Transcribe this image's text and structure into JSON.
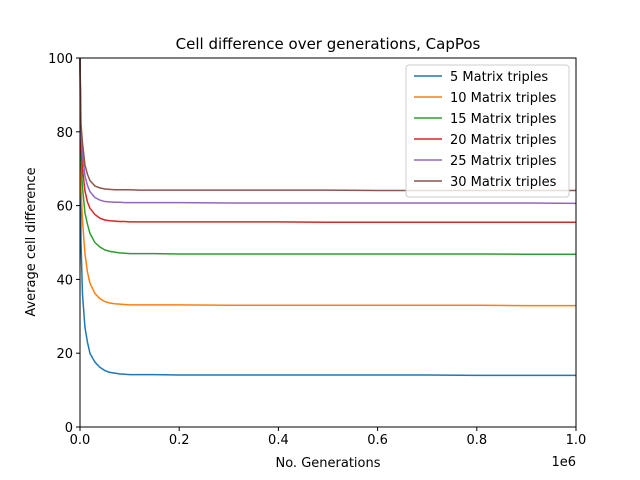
{
  "chart_data": {
    "type": "line",
    "title": "Cell difference over generations, CapPos",
    "xlabel": "No. Generations",
    "ylabel": "Average cell difference",
    "x_offset_label": "1e6",
    "xlim": [
      0,
      1000000
    ],
    "ylim": [
      0,
      100
    ],
    "x_ticks": [
      0,
      200000,
      400000,
      600000,
      800000,
      1000000
    ],
    "x_tick_labels": [
      "0.0",
      "0.2",
      "0.4",
      "0.6",
      "0.8",
      "1.0"
    ],
    "y_ticks": [
      0,
      20,
      40,
      60,
      80,
      100
    ],
    "y_tick_labels": [
      "0",
      "20",
      "40",
      "60",
      "80",
      "100"
    ],
    "grid": false,
    "legend_position": "top-right",
    "x": [
      0,
      2000,
      5000,
      10000,
      15000,
      20000,
      30000,
      40000,
      50000,
      60000,
      70000,
      80000,
      90000,
      100000,
      120000,
      150000,
      200000,
      300000,
      400000,
      500000,
      600000,
      700000,
      800000,
      900000,
      1000000
    ],
    "series": [
      {
        "name": "5 Matrix triples",
        "color": "#1f77b4",
        "values": [
          100,
          50,
          36,
          27,
          23,
          20,
          17.6,
          16.2,
          15.3,
          14.8,
          14.6,
          14.4,
          14.3,
          14.2,
          14.2,
          14.2,
          14.1,
          14.1,
          14.1,
          14.1,
          14.1,
          14.1,
          14.0,
          14.0,
          14.0
        ]
      },
      {
        "name": "10 Matrix triples",
        "color": "#ff7f0e",
        "values": [
          100,
          65,
          56,
          47,
          42,
          39,
          36.2,
          34.8,
          34.0,
          33.6,
          33.4,
          33.3,
          33.2,
          33.1,
          33.1,
          33.1,
          33.1,
          33.0,
          33.0,
          33.0,
          33.0,
          33.0,
          33.0,
          32.9,
          32.9
        ]
      },
      {
        "name": "15 Matrix triples",
        "color": "#2ca02c",
        "values": [
          100,
          72,
          65,
          58,
          55,
          52.5,
          50.0,
          48.8,
          48.0,
          47.6,
          47.4,
          47.2,
          47.1,
          47.0,
          47.0,
          47.0,
          46.9,
          46.9,
          46.9,
          46.9,
          46.9,
          46.9,
          46.9,
          46.8,
          46.8
        ]
      },
      {
        "name": "20 Matrix triples",
        "color": "#d62728",
        "values": [
          100,
          76,
          70,
          64,
          61,
          59.3,
          57.6,
          56.6,
          56.1,
          55.9,
          55.8,
          55.7,
          55.7,
          55.6,
          55.6,
          55.6,
          55.6,
          55.6,
          55.6,
          55.5,
          55.5,
          55.5,
          55.5,
          55.5,
          55.5
        ]
      },
      {
        "name": "25 Matrix triples",
        "color": "#9467bd",
        "values": [
          100,
          79,
          74,
          68,
          65.5,
          63.8,
          62.2,
          61.5,
          61.1,
          61.0,
          60.9,
          60.9,
          60.8,
          60.8,
          60.8,
          60.8,
          60.8,
          60.7,
          60.7,
          60.7,
          60.7,
          60.7,
          60.7,
          60.7,
          60.6
        ]
      },
      {
        "name": "30 Matrix triples",
        "color": "#8c564b",
        "values": [
          100,
          82,
          77,
          71,
          68.5,
          66.8,
          65.3,
          64.8,
          64.5,
          64.4,
          64.3,
          64.3,
          64.3,
          64.3,
          64.2,
          64.2,
          64.2,
          64.2,
          64.2,
          64.2,
          64.1,
          64.1,
          64.1,
          64.1,
          64.1
        ]
      }
    ]
  }
}
